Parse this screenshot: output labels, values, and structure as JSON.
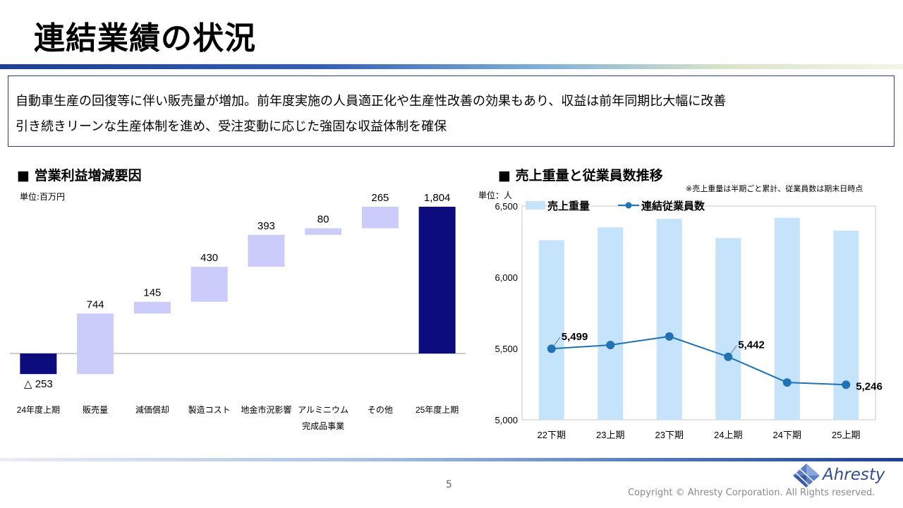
{
  "title": "連結業績の状況",
  "summary": {
    "line1": "自動車生産の回復等に伴い販売量が増加。前年度実施の人員適正化や生産性改善の効果もあり、収益は前年同期比大幅に改善",
    "line2": "引き続きリーンな生産体制を進め、受注変動に応じた強固な収益体制を確保"
  },
  "waterfall": {
    "section_title": "■ 営業利益増減要因",
    "unit": "単位:百万円"
  },
  "combo": {
    "section_title": "■ 売上重量と従業員数推移",
    "unit": "単位：人",
    "note": "※売上重量は半期ごと累計、従業員数は期末日時点"
  },
  "chart_data": [
    {
      "type": "bar",
      "subtype": "waterfall",
      "title": "営業利益増減要因",
      "unit": "単位:百万円",
      "categories": [
        "24年度上期",
        "販売量",
        "減価償却",
        "製造コスト",
        "地金市況影響",
        "アルミニウム完成品事業",
        "その他",
        "25年度上期"
      ],
      "category_lines": [
        [
          "24年度上期"
        ],
        [
          "販売量"
        ],
        [
          "減価償却"
        ],
        [
          "製造コスト"
        ],
        [
          "地金市況影響"
        ],
        [
          "アルミニウム",
          "完成品事業"
        ],
        [
          "その他"
        ],
        [
          "25年度上期"
        ]
      ],
      "values": [
        -253,
        744,
        145,
        430,
        393,
        80,
        265,
        1804
      ],
      "kinds": [
        "total",
        "delta",
        "delta",
        "delta",
        "delta",
        "delta",
        "delta",
        "total"
      ],
      "labels": [
        "△ 253",
        "744",
        "145",
        "430",
        "393",
        "80",
        "265",
        "1,804"
      ],
      "colors": {
        "total": "#0c0c7e",
        "delta": "#ccccfa"
      }
    },
    {
      "type": "bar+line",
      "title": "売上重量と従業員数推移",
      "unit": "単位：人",
      "categories": [
        "22下期",
        "23上期",
        "23下期",
        "24上期",
        "24下期",
        "25上期"
      ],
      "ylim": [
        5000,
        6500
      ],
      "yticks": [
        5000,
        5500,
        6000,
        6500
      ],
      "ytick_labels": [
        "5,000",
        "5,500",
        "6,000",
        "6,500"
      ],
      "series": [
        {
          "name": "売上重量",
          "kind": "bar",
          "axis": "secondary-unlabeled",
          "relative_heights": [
            0.84,
            0.9,
            0.94,
            0.85,
            0.945,
            0.885
          ],
          "color": "#c5e3fb"
        },
        {
          "name": "連結従業員数",
          "kind": "line",
          "values": [
            5499,
            5525,
            5585,
            5442,
            5262,
            5246
          ],
          "color": "#1f73b4"
        }
      ],
      "data_labels": [
        {
          "index": 0,
          "text": "5,499"
        },
        {
          "index": 3,
          "text": "5,442"
        },
        {
          "index": 5,
          "text": "5,246"
        }
      ]
    }
  ],
  "footer": {
    "page": "5",
    "copyright": "Copyright © Ahresty Corporation. All Rights reserved.",
    "logo": "Ahresty"
  }
}
